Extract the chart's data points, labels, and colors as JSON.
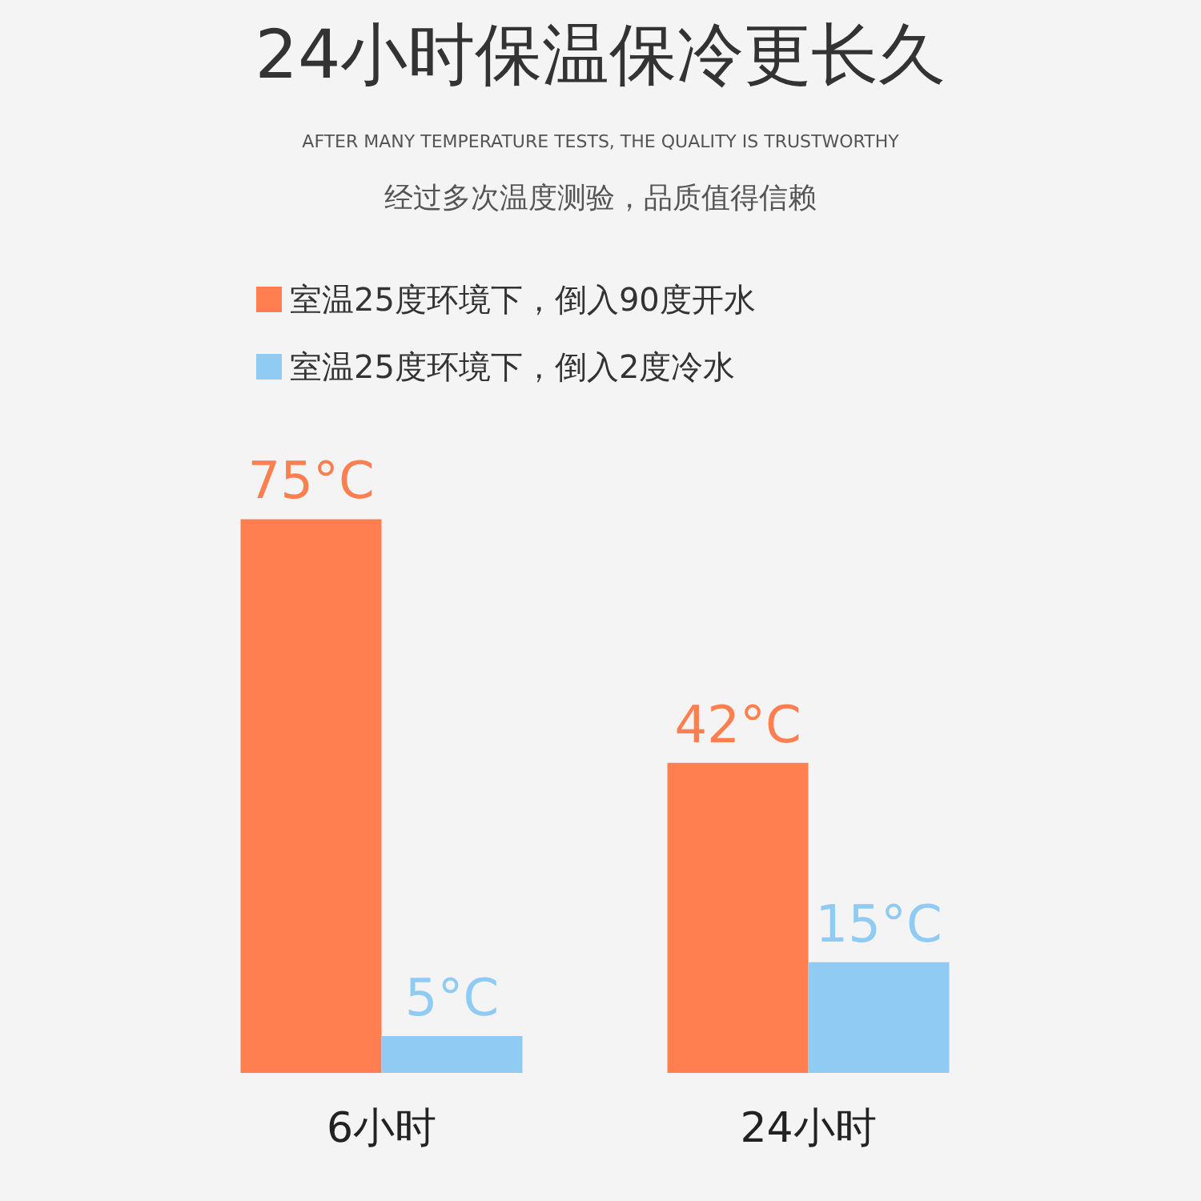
{
  "chart_data": {
    "type": "bar",
    "title": "24小时保温保冷更长久",
    "subtitle": "AFTER MANY TEMPERATURE TESTS, THE QUALITY IS TRUSTWORTHY",
    "annotations": [
      "经过多次温度测验，品质值得信赖"
    ],
    "categories": [
      "6小时",
      "24小时"
    ],
    "legend": "top left",
    "series": [
      {
        "name": "室温25度环境下，倒入90度开水",
        "color": "#ff7f50",
        "values": [
          75,
          42
        ],
        "value_labels": [
          "75°C",
          "42°C"
        ]
      },
      {
        "name": "室温25度环境下，倒入2度冷水",
        "color": "#8fcbf3",
        "values": [
          5,
          15
        ],
        "value_labels": [
          "5°C",
          "15°C"
        ]
      }
    ]
  }
}
